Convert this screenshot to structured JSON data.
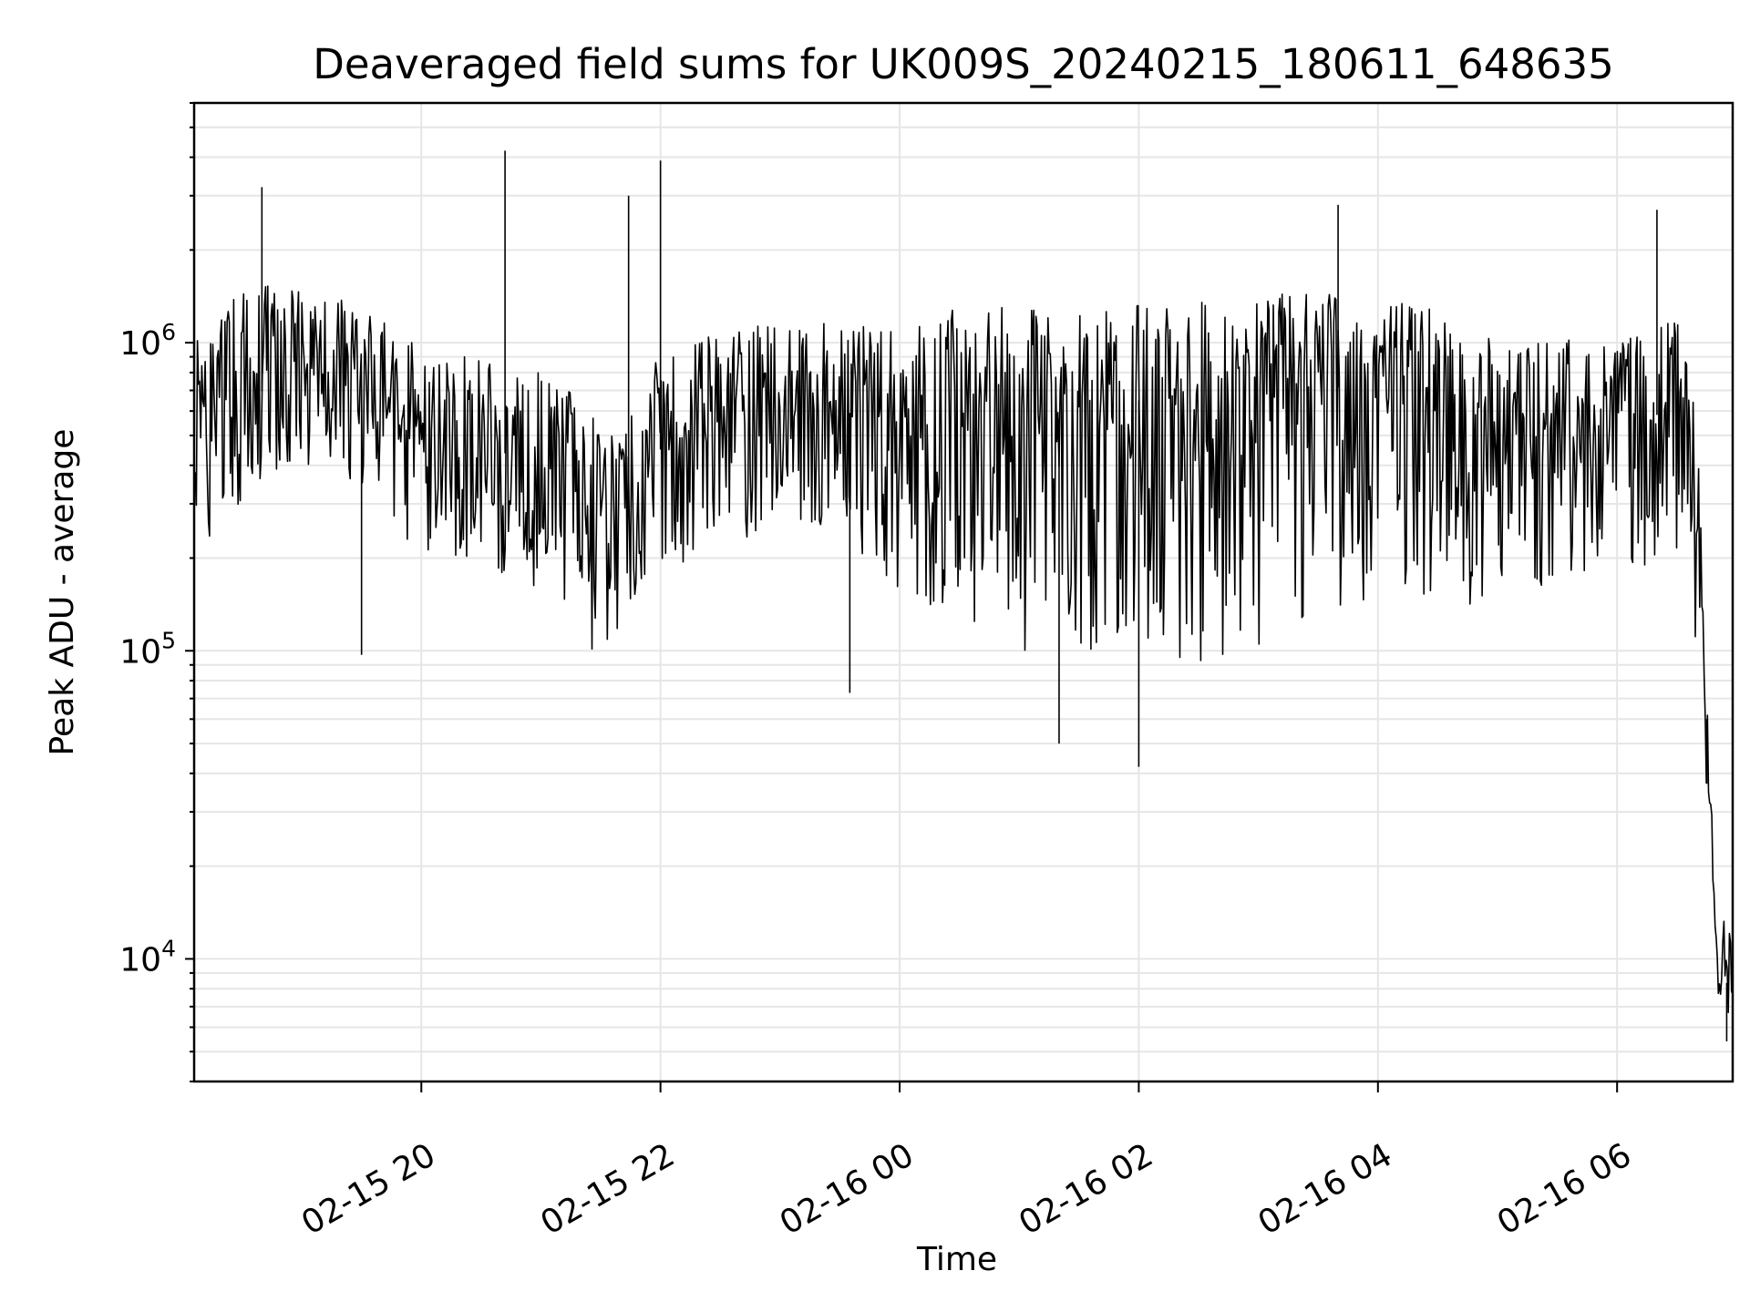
{
  "chart_data": {
    "type": "line",
    "title": "Deaveraged field sums for UK009S_20240215_180611_648635",
    "xlabel": "Time",
    "ylabel": "Peak ADU - average",
    "yscale": "log",
    "xlim": [
      "2024-02-15 18:06",
      "2024-02-16 06:58"
    ],
    "ylim": [
      4000,
      6000000
    ],
    "x_ticks": [
      {
        "t": "2024-02-15 20:00",
        "label": "02-15 20"
      },
      {
        "t": "2024-02-15 22:00",
        "label": "02-15 22"
      },
      {
        "t": "2024-02-16 00:00",
        "label": "02-16 00"
      },
      {
        "t": "2024-02-16 02:00",
        "label": "02-16 02"
      },
      {
        "t": "2024-02-16 04:00",
        "label": "02-16 04"
      },
      {
        "t": "2024-02-16 06:00",
        "label": "02-16 06"
      }
    ],
    "y_ticks": [
      {
        "value": 10000,
        "base": "10",
        "exp": "4"
      },
      {
        "value": 100000,
        "base": "10",
        "exp": "5"
      },
      {
        "value": 1000000,
        "base": "10",
        "exp": "6"
      }
    ],
    "grid": true,
    "line_color": "#000000",
    "grid_color": "#e6e6e6",
    "series": [
      {
        "x": [
          "2024-02-15 18:06",
          "2024-02-15 18:30",
          "2024-02-15 19:00",
          "2024-02-15 19:30",
          "2024-02-15 20:00",
          "2024-02-15 20:30",
          "2024-02-15 21:00",
          "2024-02-15 21:30",
          "2024-02-15 22:00",
          "2024-02-15 22:30",
          "2024-02-15 23:00",
          "2024-02-15 23:30",
          "2024-02-16 00:00",
          "2024-02-16 00:30",
          "2024-02-16 01:00",
          "2024-02-16 01:30",
          "2024-02-16 02:00",
          "2024-02-16 02:30",
          "2024-02-16 03:00",
          "2024-02-16 03:30",
          "2024-02-16 04:00",
          "2024-02-16 04:30",
          "2024-02-16 05:00",
          "2024-02-16 05:30",
          "2024-02-16 06:00",
          "2024-02-16 06:30",
          "2024-02-16 06:40",
          "2024-02-16 06:45",
          "2024-02-16 06:50",
          "2024-02-16 06:58"
        ],
        "y": [
          550000,
          650000,
          800000,
          700000,
          500000,
          450000,
          420000,
          300000,
          450000,
          550000,
          600000,
          600000,
          550000,
          650000,
          600000,
          550000,
          650000,
          600000,
          650000,
          700000,
          750000,
          650000,
          500000,
          500000,
          550000,
          600000,
          300000,
          60000,
          9000,
          8000
        ],
        "upper": [
          1000000,
          1500000,
          1600000,
          1300000,
          1000000,
          900000,
          800000,
          600000,
          900000,
          1100000,
          1200000,
          1150000,
          1100000,
          1300000,
          1300000,
          1250000,
          1400000,
          1350000,
          1400000,
          1500000,
          1400000,
          1300000,
          1000000,
          1050000,
          1000000,
          1200000,
          600000,
          70000,
          15000,
          12000
        ],
        "lower": [
          200000,
          300000,
          400000,
          350000,
          200000,
          180000,
          160000,
          90000,
          180000,
          220000,
          250000,
          250000,
          150000,
          120000,
          100000,
          100000,
          100000,
          90000,
          100000,
          130000,
          150000,
          150000,
          130000,
          170000,
          180000,
          200000,
          100000,
          30000,
          6000,
          5500
        ],
        "spikes": [
          {
            "t": "2024-02-15 18:40",
            "value": 3200000
          },
          {
            "t": "2024-02-15 20:42",
            "value": 4200000
          },
          {
            "t": "2024-02-15 22:00",
            "value": 3900000
          },
          {
            "t": "2024-02-15 21:44",
            "value": 3000000
          },
          {
            "t": "2024-02-16 03:40",
            "value": 2800000
          },
          {
            "t": "2024-02-16 06:20",
            "value": 2700000
          },
          {
            "t": "2024-02-16 02:00",
            "value": 42000
          },
          {
            "t": "2024-02-15 19:30",
            "value": 97000
          },
          {
            "t": "2024-02-15 23:35",
            "value": 73000
          },
          {
            "t": "2024-02-16 01:20",
            "value": 50000
          },
          {
            "t": "2024-02-16 06:45",
            "value": 37000
          },
          {
            "t": "2024-02-16 06:55",
            "value": 5400
          }
        ]
      }
    ]
  }
}
